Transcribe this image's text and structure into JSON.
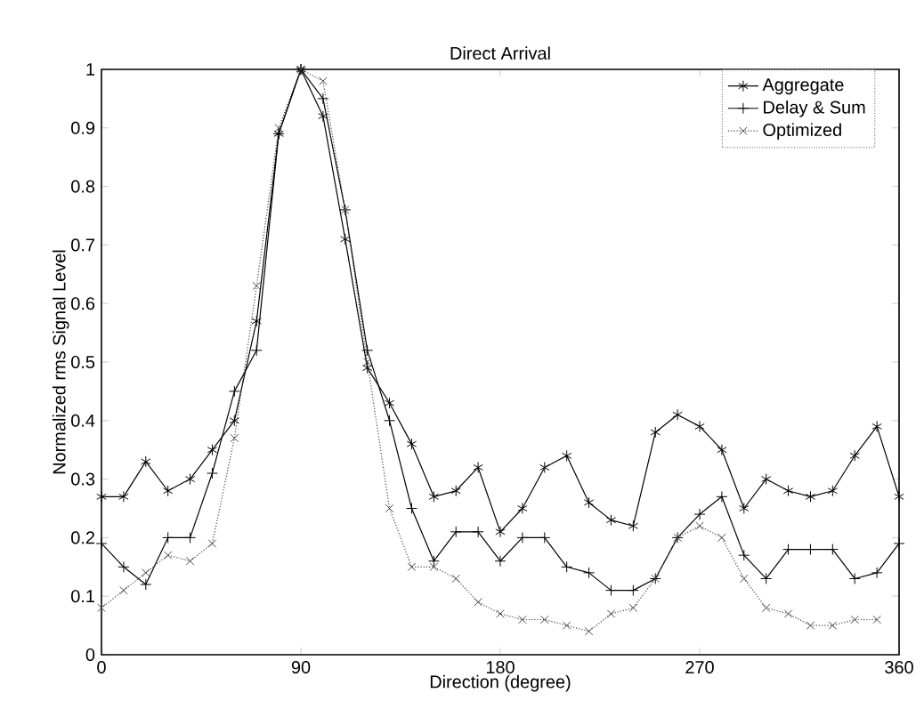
{
  "chart_data": {
    "type": "line",
    "title": "Direct Arrival",
    "xlabel": "Direction (degree)",
    "ylabel": "Normalized rms Signal Level",
    "x": [
      0,
      10,
      20,
      30,
      40,
      50,
      60,
      70,
      80,
      90,
      100,
      110,
      120,
      130,
      140,
      150,
      160,
      170,
      180,
      190,
      200,
      210,
      220,
      230,
      240,
      250,
      260,
      270,
      280,
      290,
      300,
      310,
      320,
      330,
      340,
      350,
      360
    ],
    "xlim": [
      0,
      360
    ],
    "xticks": [
      0,
      90,
      180,
      270,
      360
    ],
    "ylim": [
      0,
      1
    ],
    "yticks": [
      0,
      0.1,
      0.2,
      0.3,
      0.4,
      0.5,
      0.6,
      0.7,
      0.8,
      0.9,
      1
    ],
    "grid": false,
    "legend": "top right",
    "series": [
      {
        "name": "Aggregate",
        "color": "#000000",
        "marker": "cross",
        "line_style": "solid",
        "values": [
          0.27,
          0.27,
          0.33,
          0.28,
          0.3,
          0.35,
          0.4,
          0.57,
          0.89,
          1.0,
          0.92,
          0.71,
          0.49,
          0.43,
          0.36,
          0.27,
          0.28,
          0.32,
          0.21,
          0.25,
          0.32,
          0.34,
          0.26,
          0.23,
          0.22,
          0.38,
          0.41,
          0.39,
          0.35,
          0.25,
          0.3,
          0.28,
          0.27,
          0.28,
          0.34,
          0.39,
          0.27
        ]
      },
      {
        "name": "Delay & Sum",
        "color": "#000000",
        "marker": "plus",
        "line_style": "solid",
        "values": [
          0.19,
          0.15,
          0.12,
          0.2,
          0.2,
          0.31,
          0.45,
          0.52,
          0.89,
          1.0,
          0.95,
          0.76,
          0.52,
          0.4,
          0.25,
          0.16,
          0.21,
          0.21,
          0.16,
          0.2,
          0.2,
          0.15,
          0.14,
          0.11,
          0.11,
          0.13,
          0.2,
          0.24,
          0.27,
          0.17,
          0.13,
          0.18,
          0.18,
          0.18,
          0.13,
          0.14,
          0.19
        ]
      },
      {
        "name": "Optimized",
        "color": "#444444",
        "marker": "x",
        "line_style": "dotted",
        "values": [
          0.08,
          0.11,
          0.14,
          0.17,
          0.16,
          0.19,
          0.37,
          0.63,
          0.9,
          1.0,
          0.98,
          0.76,
          0.5,
          0.25,
          0.15,
          0.15,
          0.13,
          0.09,
          0.07,
          0.06,
          0.06,
          0.05,
          0.04,
          0.07,
          0.08,
          0.13,
          0.2,
          0.22,
          0.2,
          0.13,
          0.08,
          0.07,
          0.05,
          0.05,
          0.06,
          0.06,
          null
        ]
      }
    ]
  }
}
